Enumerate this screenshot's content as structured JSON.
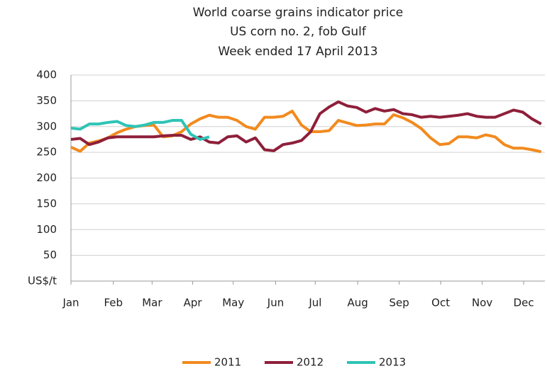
{
  "chart_data": {
    "type": "line",
    "title": "World coarse grains indicator price",
    "subtitle": [
      "US corn no. 2, fob Gulf",
      "Week ended 17 April 2013"
    ],
    "ylabel": "US$/t",
    "x": [
      1,
      2,
      3,
      4,
      5,
      6,
      7,
      8,
      9,
      10,
      11,
      12,
      13,
      14,
      15,
      16,
      17,
      18,
      19,
      20,
      21,
      22,
      23,
      24,
      25,
      26,
      27,
      28,
      29,
      30,
      31,
      32,
      33,
      34,
      35,
      36,
      37,
      38,
      39,
      40,
      41,
      42,
      43,
      44,
      45,
      46,
      47,
      48,
      49,
      50,
      51,
      52
    ],
    "xlim": [
      1,
      52.4
    ],
    "xticks": [
      {
        "value": 1,
        "label": "Jan"
      },
      {
        "value": 5.6,
        "label": "Feb"
      },
      {
        "value": 9.8,
        "label": "Mar"
      },
      {
        "value": 14.2,
        "label": "Apr"
      },
      {
        "value": 18.6,
        "label": "May"
      },
      {
        "value": 23.2,
        "label": "Jun"
      },
      {
        "value": 27.5,
        "label": "Jul"
      },
      {
        "value": 32.1,
        "label": "Aug"
      },
      {
        "value": 36.6,
        "label": "Sep"
      },
      {
        "value": 41.1,
        "label": "Oct"
      },
      {
        "value": 45.6,
        "label": "Nov"
      },
      {
        "value": 50.1,
        "label": "Dec"
      }
    ],
    "ylim": [
      0,
      400
    ],
    "yticks": [
      50,
      100,
      150,
      200,
      250,
      300,
      350,
      400
    ],
    "grid": true,
    "legend": "bottom",
    "series": [
      {
        "name": "2011",
        "color": "#f28a1e",
        "values": [
          260,
          252,
          268,
          272,
          278,
          288,
          295,
          300,
          302,
          303,
          280,
          282,
          290,
          305,
          315,
          322,
          318,
          318,
          312,
          300,
          295,
          318,
          318,
          320,
          330,
          303,
          290,
          290,
          292,
          312,
          307,
          302,
          303,
          305,
          305,
          323,
          317,
          308,
          296,
          278,
          265,
          267,
          280,
          280,
          278,
          284,
          280,
          265,
          258,
          258,
          255,
          251
        ]
      },
      {
        "name": "2012",
        "color": "#8e1f3a",
        "values": [
          275,
          277,
          265,
          270,
          278,
          280,
          280,
          280,
          280,
          280,
          282,
          283,
          283,
          275,
          280,
          270,
          268,
          280,
          282,
          270,
          278,
          255,
          253,
          265,
          268,
          273,
          290,
          325,
          338,
          348,
          340,
          337,
          328,
          335,
          330,
          333,
          325,
          323,
          318,
          320,
          318,
          320,
          322,
          325,
          320,
          318,
          318,
          325,
          332,
          328,
          315,
          305
        ]
      },
      {
        "name": "2013",
        "color": "#2ec4b6",
        "values": [
          297,
          295,
          305,
          305,
          308,
          310,
          302,
          300,
          303,
          308,
          308,
          312,
          312,
          285,
          275,
          280,
          null,
          null,
          null,
          null,
          null,
          null,
          null,
          null,
          null,
          null,
          null,
          null,
          null,
          null,
          null,
          null,
          null,
          null,
          null,
          null,
          null,
          null,
          null,
          null,
          null,
          null,
          null,
          null,
          null,
          null,
          null,
          null,
          null,
          null,
          null,
          null
        ]
      }
    ]
  }
}
